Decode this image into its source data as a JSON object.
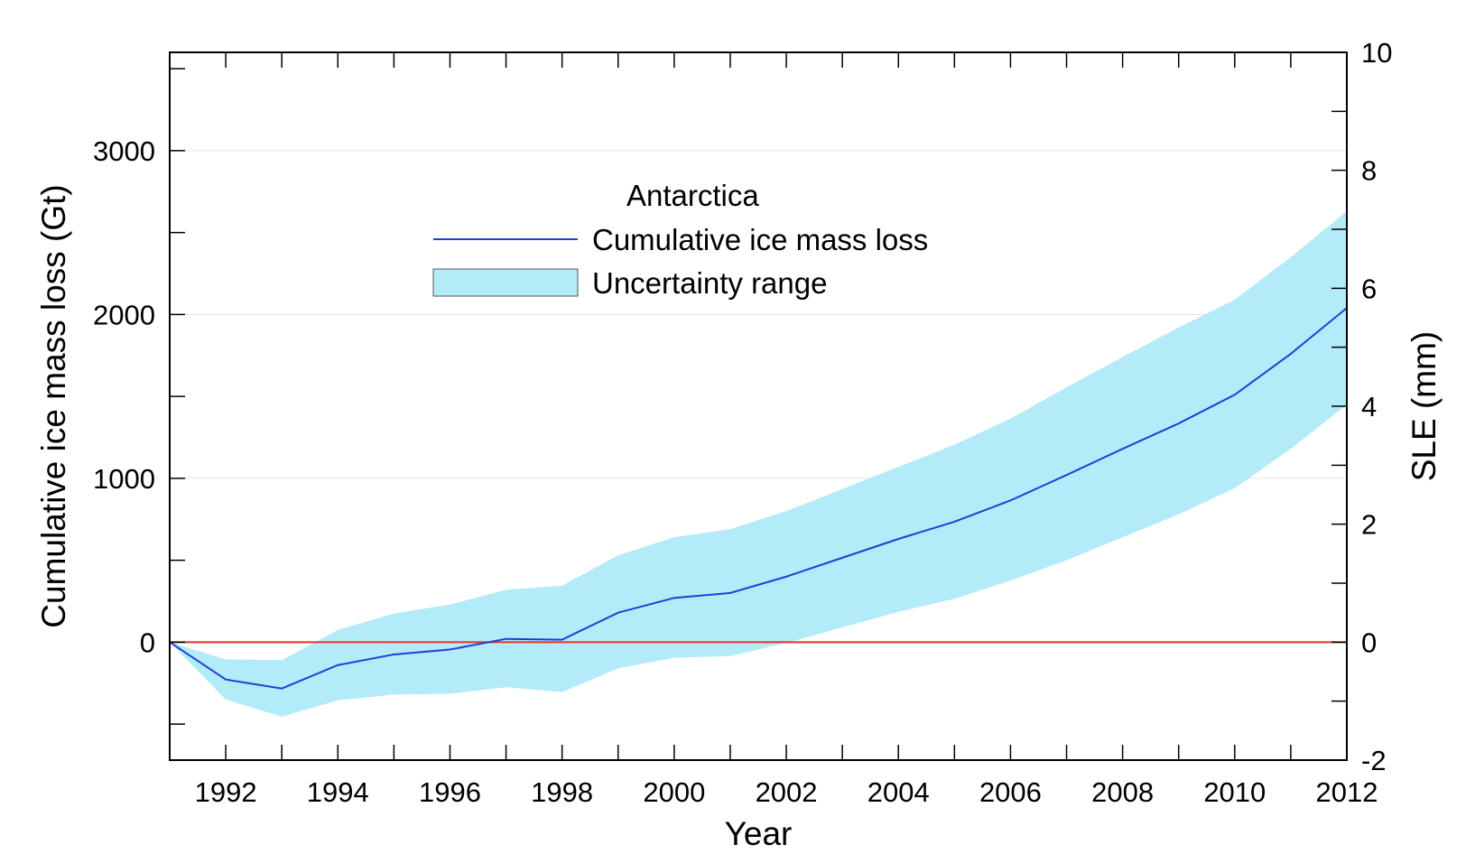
{
  "chart_data": {
    "type": "area",
    "x": [
      1991,
      1992,
      1993,
      1994,
      1995,
      1996,
      1997,
      1998,
      1999,
      2000,
      2001,
      2002,
      2003,
      2004,
      2005,
      2006,
      2007,
      2008,
      2009,
      2010,
      2011,
      2012
    ],
    "series": [
      {
        "name": "Cumulative ice mass loss",
        "type": "line",
        "color": "#1f3fd8",
        "values": [
          0,
          -228,
          -283,
          -140,
          -75,
          -45,
          20,
          15,
          180,
          270,
          300,
          400,
          515,
          630,
          735,
          865,
          1020,
          1180,
          1335,
          1510,
          1760,
          2040
        ]
      },
      {
        "name": "Uncertainty range",
        "type": "band",
        "color": "#b3ebf8",
        "lower": [
          0,
          -350,
          -455,
          -355,
          -320,
          -315,
          -275,
          -305,
          -160,
          -95,
          -85,
          -5,
          90,
          185,
          265,
          375,
          500,
          640,
          780,
          940,
          1180,
          1450
        ],
        "upper": [
          0,
          -105,
          -110,
          75,
          175,
          230,
          320,
          345,
          530,
          640,
          690,
          800,
          935,
          1070,
          1205,
          1365,
          1555,
          1740,
          1920,
          2090,
          2350,
          2630
        ]
      }
    ],
    "reference_line": {
      "y": 0,
      "color": "#e8302a"
    },
    "legend": {
      "title": "Antarctica",
      "position": "top-center"
    },
    "xlabel": "Year",
    "ylabel": "Cumulative ice mass loss (Gt)",
    "y2label": "SLE (mm)",
    "xlim": [
      1991,
      2012
    ],
    "ylim": [
      -720,
      3600
    ],
    "y2lim": [
      -2,
      10
    ],
    "x_ticks": [
      1992,
      1994,
      1996,
      1998,
      2000,
      2002,
      2004,
      2006,
      2008,
      2010,
      2012
    ],
    "y_ticks": [
      0,
      1000,
      2000,
      3000
    ],
    "y2_ticks": [
      -2,
      0,
      2,
      4,
      6,
      8,
      10
    ],
    "grid": "horizontal"
  }
}
